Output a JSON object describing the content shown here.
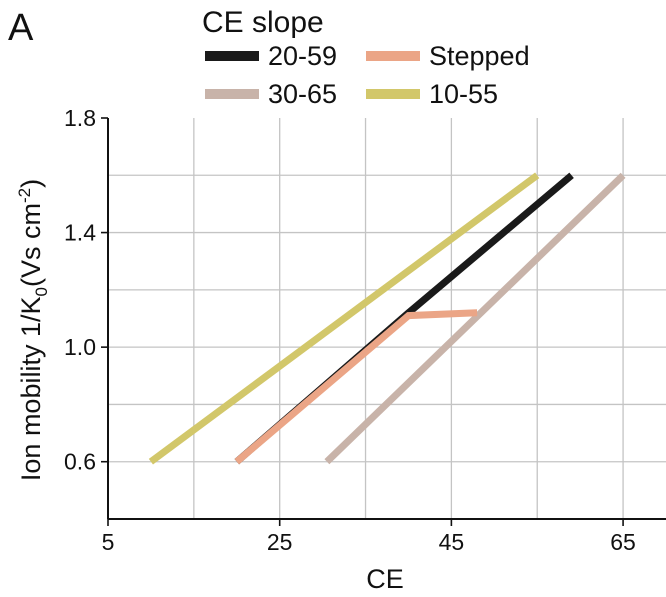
{
  "chart_data": {
    "type": "line",
    "panel_label": "A",
    "xlabel": "CE",
    "ylabel": {
      "prefix": "Ion mobility 1/K",
      "subscript": "0",
      "unit_prefix": "(Vs cm",
      "superscript": "-2",
      "unit_suffix": ")"
    },
    "xlim": [
      5,
      70
    ],
    "ylim": [
      0.4,
      1.8
    ],
    "xticks": [
      5,
      25,
      45,
      65
    ],
    "xtick_labels": [
      "5",
      "25",
      "45",
      "65"
    ],
    "yticks": [
      0.6,
      1.0,
      1.4,
      1.8
    ],
    "ytick_labels": [
      "0.6",
      "1.0",
      "1.4",
      "1.8"
    ],
    "grid": true,
    "legend": {
      "title": "CE slope",
      "placement": "top",
      "entries": [
        {
          "label": "20-59",
          "color": "#1a1a1a"
        },
        {
          "label": "Stepped",
          "color": "#eba586"
        },
        {
          "label": "30-65",
          "color": "#c8b3a9"
        },
        {
          "label": "10-55",
          "color": "#d2c76a"
        }
      ]
    },
    "series": [
      {
        "name": "10-55",
        "color": "#d2c76a",
        "points": [
          [
            10,
            0.6
          ],
          [
            55,
            1.6
          ]
        ]
      },
      {
        "name": "30-65",
        "color": "#c8b3a9",
        "points": [
          [
            30.5,
            0.6
          ],
          [
            65,
            1.6
          ]
        ]
      },
      {
        "name": "20-59",
        "color": "#1a1a1a",
        "points": [
          [
            20,
            0.6
          ],
          [
            40,
            1.12
          ],
          [
            59,
            1.6
          ]
        ]
      },
      {
        "name": "Stepped",
        "color": "#eba586",
        "points": [
          [
            20,
            0.6
          ],
          [
            40,
            1.11
          ],
          [
            48,
            1.12
          ]
        ]
      }
    ]
  }
}
